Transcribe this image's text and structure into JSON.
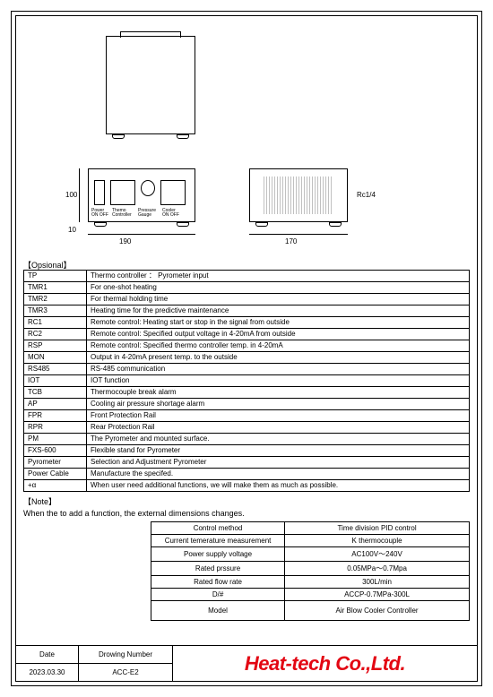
{
  "opsional_header": "【Opsional】",
  "opsional": [
    {
      "code": "TP",
      "desc": "Thermo controller ： Pyrometer input"
    },
    {
      "code": "TMR1",
      "desc": "For one-shot heating"
    },
    {
      "code": "TMR2",
      "desc": "For thermal holding time"
    },
    {
      "code": "TMR3",
      "desc": "Heating time for the predictive maintenance"
    },
    {
      "code": "RC1",
      "desc": "Remote control: Heating start or stop in the signal from outside"
    },
    {
      "code": "RC2",
      "desc": "Remote control: Specified output voltage in 4-20mA from outside"
    },
    {
      "code": "RSP",
      "desc": "Remote control: Specified thermo controller temp. in 4-20mA"
    },
    {
      "code": "MON",
      "desc": "Output in 4-20mA present temp. to the outside"
    },
    {
      "code": "RS485",
      "desc": "RS-485 communication"
    },
    {
      "code": "IOT",
      "desc": "IOT function"
    },
    {
      "code": "TCB",
      "desc": "Thermocouple break alarm"
    },
    {
      "code": "AP",
      "desc": "Cooling air pressure shortage alarm"
    },
    {
      "code": "FPR",
      "desc": "Front Protection Rail"
    },
    {
      "code": "RPR",
      "desc": "Rear Protection Rail"
    },
    {
      "code": "PM",
      "desc": "The Pyrometer and mounted surface."
    },
    {
      "code": "FXS-600",
      "desc": "Flexible stand for Pyrometer"
    },
    {
      "code": "Pyrometer",
      "desc": "Selection and Adjustment Pyrometer"
    },
    {
      "code": "Power Cable",
      "desc": "Manufacture the specifed."
    },
    {
      "code": "+α",
      "desc": "When user need additional functions, we will make them as much as possible."
    }
  ],
  "note": {
    "title": "【Note】",
    "body": "When the to add a function, the external dimensions changes."
  },
  "spec": [
    {
      "k": "Control method",
      "v": "Time division PID control"
    },
    {
      "k": "Current temerature measurement",
      "v": "K thermocouple"
    },
    {
      "k": "Power supply voltage",
      "v": "AC100V～240V"
    },
    {
      "k": "Rated prssure",
      "v": "0.05MPa～0.7Mpa"
    },
    {
      "k": "Rated flow rate",
      "v": "300L/min"
    },
    {
      "k": "D/#",
      "v": "ACCP-0.7MPa-300L"
    },
    {
      "k": "Model",
      "v": "Air Blow Cooler Controller"
    }
  ],
  "title_block": {
    "date_label": "Date",
    "date": "2023.03.30",
    "drawing_label": "Drowing Number",
    "drawing": "ACC-E2",
    "company": "Heat-tech Co.,Ltd."
  },
  "dims": {
    "d190": "190",
    "d170": "170",
    "d100": "100",
    "d10": "10",
    "rc": "Rc1/4"
  },
  "labels": {
    "power": "Power\nON OFF",
    "thermo": "Themo\nController",
    "press": "Pressure\nGauge",
    "cooler": "Cooler\nON OFF"
  }
}
